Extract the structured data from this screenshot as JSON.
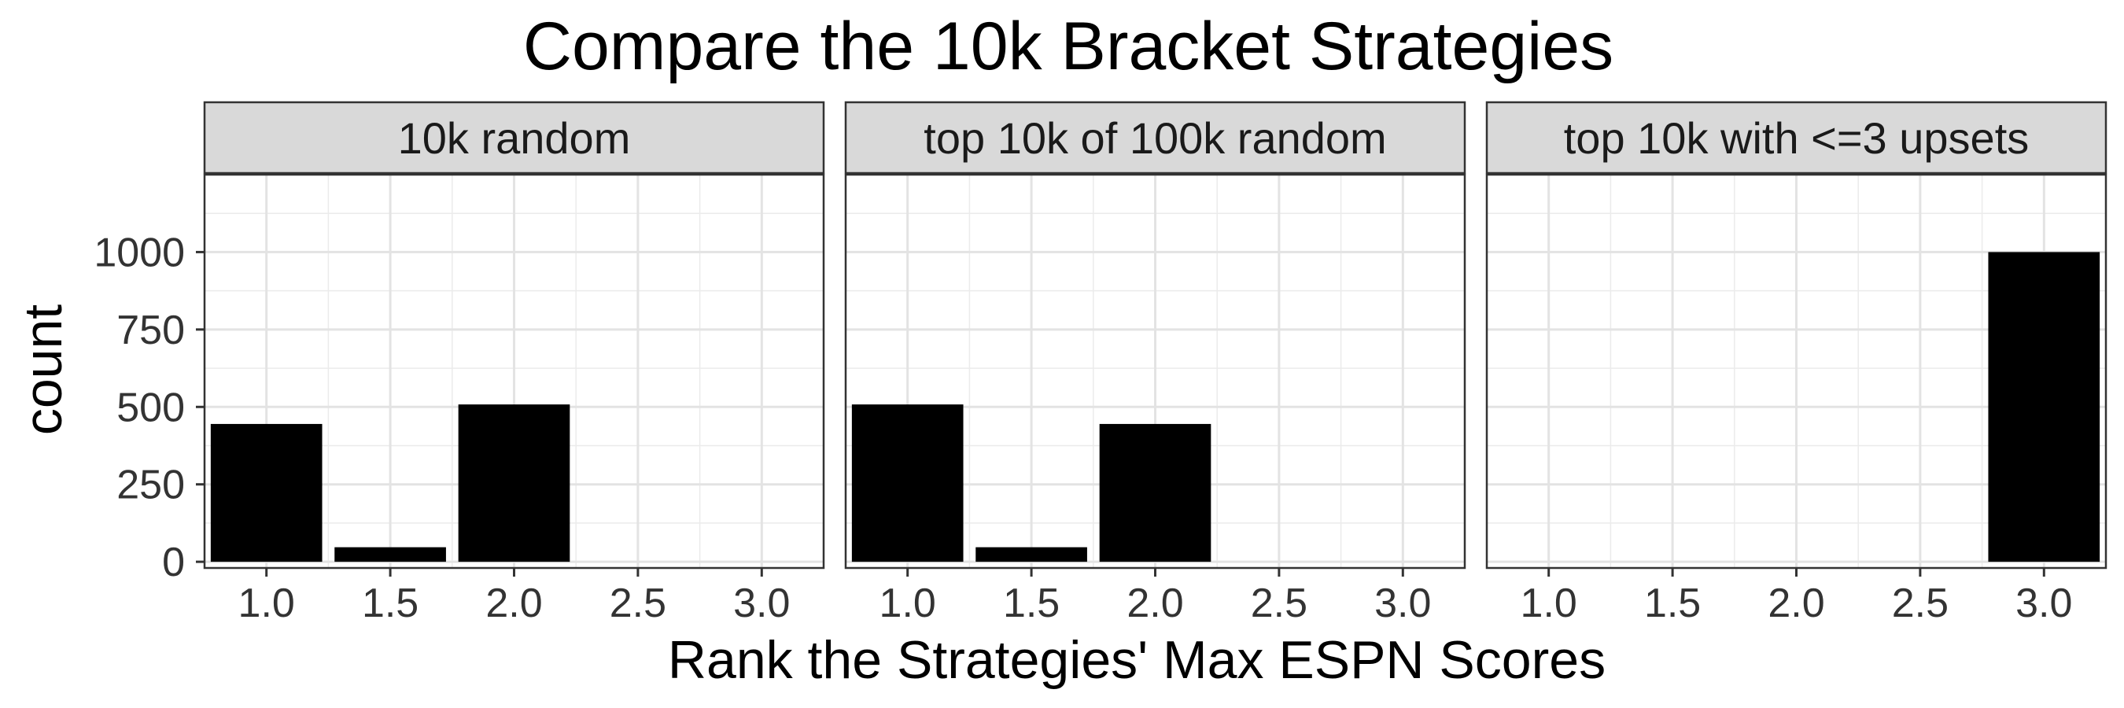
{
  "chart_data": {
    "type": "bar",
    "title": "Compare the 10k Bracket Strategies",
    "xlabel": "Rank the Strategies' Max ESPN Scores",
    "ylabel": "count",
    "xlim": [
      0.75,
      3.25
    ],
    "ylim": [
      -20,
      1250
    ],
    "x_ticks": [
      "1.0",
      "1.5",
      "2.0",
      "2.5",
      "3.0"
    ],
    "y_ticks": [
      "0",
      "250",
      "500",
      "750",
      "1000"
    ],
    "grid": true,
    "bar_color": "#000000",
    "panels": [
      {
        "label": "10k random",
        "bars": [
          {
            "x": 1.0,
            "value": 445
          },
          {
            "x": 1.5,
            "value": 47
          },
          {
            "x": 2.0,
            "value": 508
          }
        ]
      },
      {
        "label": "top 10k of 100k random",
        "bars": [
          {
            "x": 1.0,
            "value": 508
          },
          {
            "x": 1.5,
            "value": 47
          },
          {
            "x": 2.0,
            "value": 445
          }
        ]
      },
      {
        "label": "top 10k with <=3 upsets",
        "bars": [
          {
            "x": 3.0,
            "value": 1000
          }
        ]
      }
    ]
  }
}
